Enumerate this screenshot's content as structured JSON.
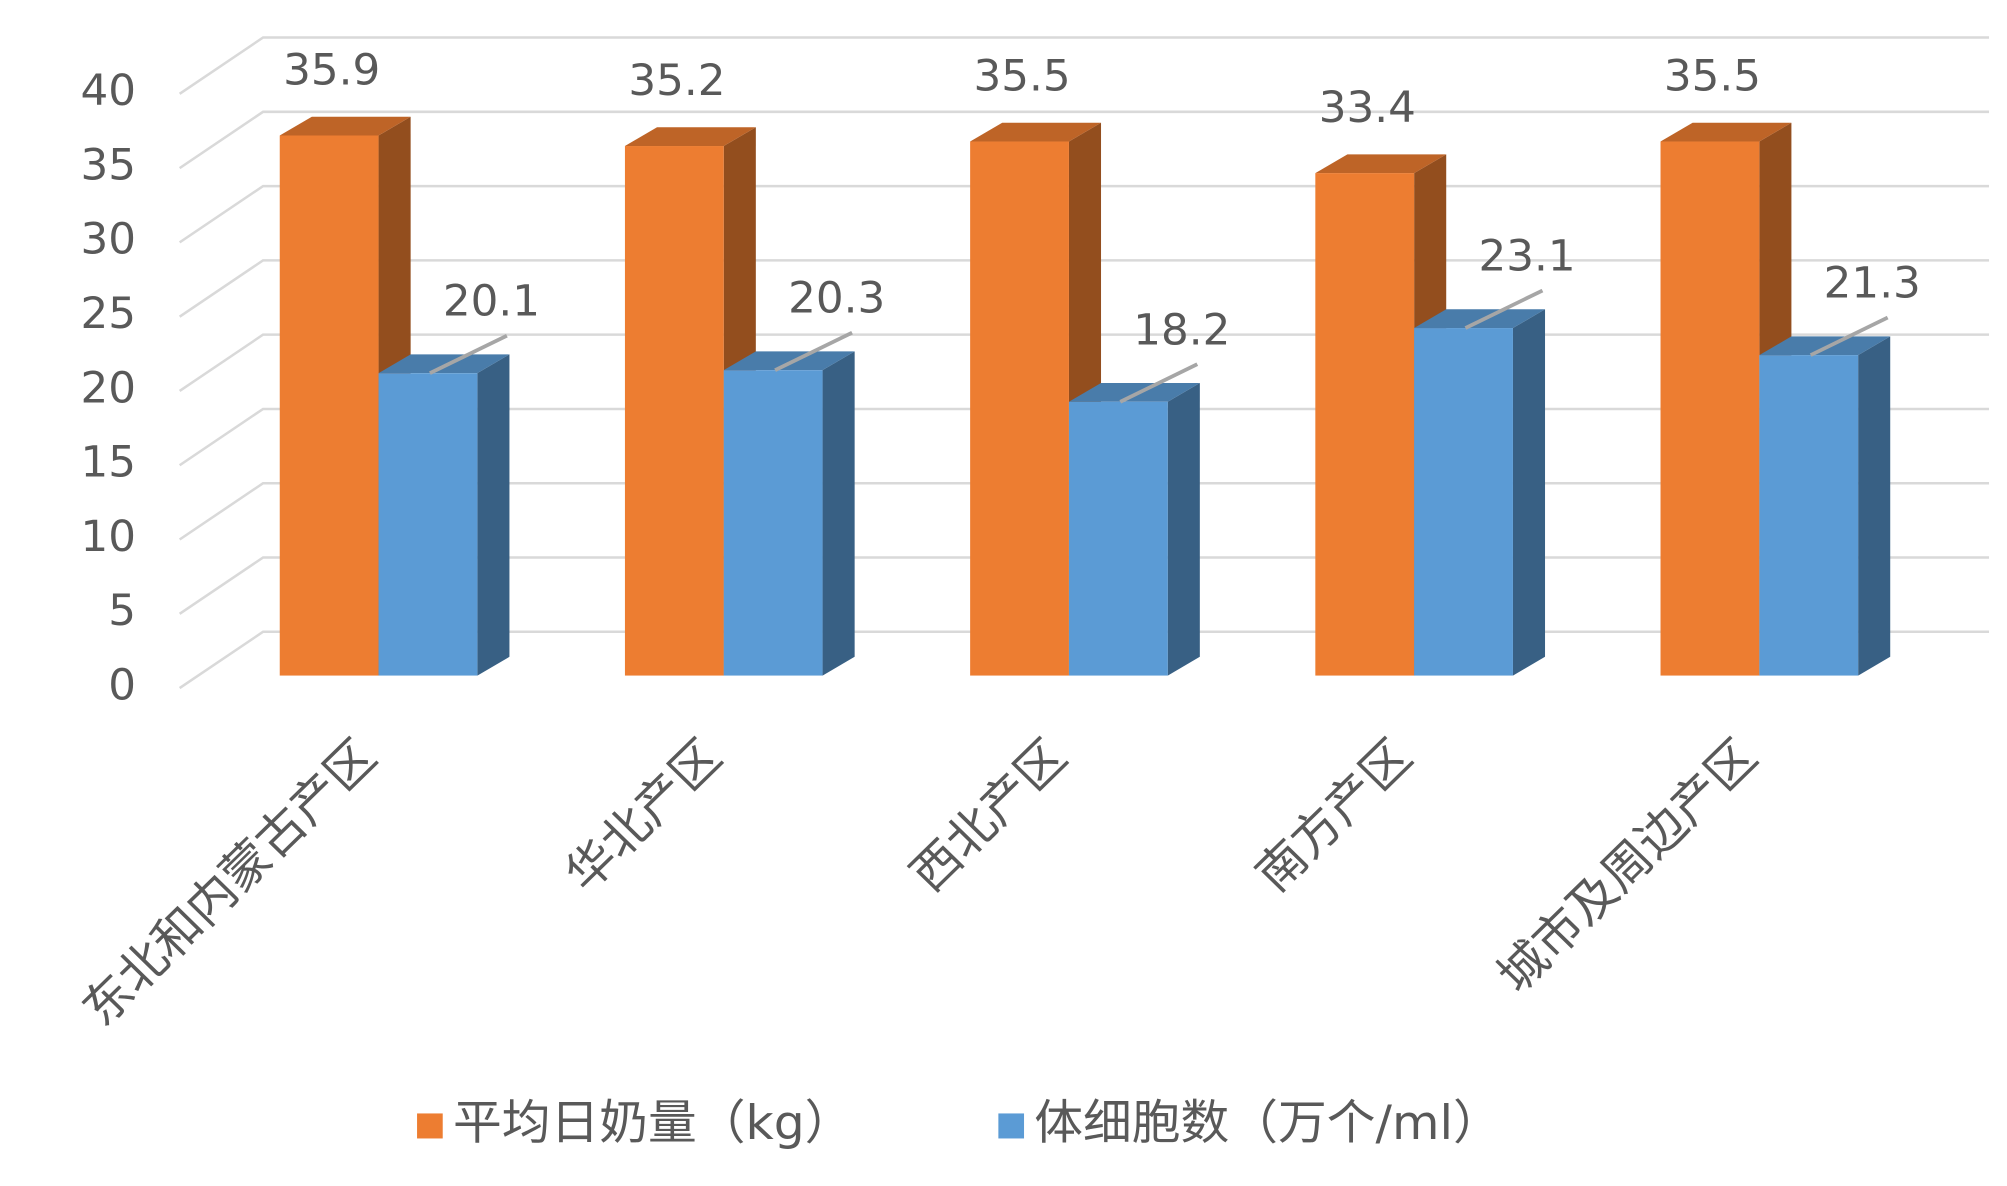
{
  "chart_data": {
    "type": "bar3d",
    "categories": [
      "东北和内蒙古产区",
      "华北产区",
      "西北产区",
      "南方产区",
      "城市及周边产区"
    ],
    "series": [
      {
        "name": "平均日奶量（kg）",
        "color": "#ED7D31",
        "values": [
          35.9,
          35.2,
          35.5,
          33.4,
          35.5
        ]
      },
      {
        "name": "体细胞数（万个/ml）",
        "color": "#5B9BD5",
        "values": [
          20.1,
          20.3,
          18.2,
          23.1,
          21.3
        ]
      }
    ],
    "ylim": [
      0,
      40
    ],
    "yticks": [
      0,
      5,
      10,
      15,
      20,
      25,
      30,
      35,
      40
    ],
    "grid": true,
    "legend": "bottom"
  }
}
